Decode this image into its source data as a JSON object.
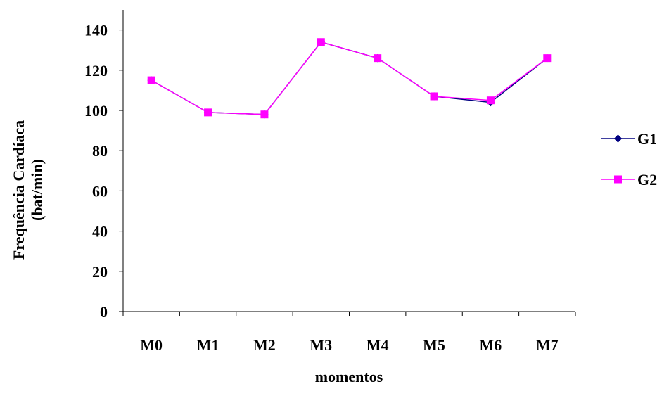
{
  "chart_data": {
    "type": "line",
    "title": "",
    "xlabel": "momentos",
    "ylabel_lines": [
      "Frequência Cardíaca",
      "(bat/min)"
    ],
    "categories": [
      "M0",
      "M1",
      "M2",
      "M3",
      "M4",
      "M5",
      "M6",
      "M7"
    ],
    "ylim": [
      0,
      150
    ],
    "yticks": [
      0,
      20,
      40,
      60,
      80,
      100,
      120,
      140
    ],
    "grid": false,
    "legend_position": "right",
    "series": [
      {
        "name": "G1",
        "color": "#000080",
        "marker": "diamond",
        "values": [
          115,
          99,
          98,
          134,
          126,
          107,
          104,
          126
        ]
      },
      {
        "name": "G2",
        "color": "#FF00FF",
        "marker": "square",
        "values": [
          115,
          99,
          98,
          134,
          126,
          107,
          105,
          126
        ]
      }
    ]
  }
}
